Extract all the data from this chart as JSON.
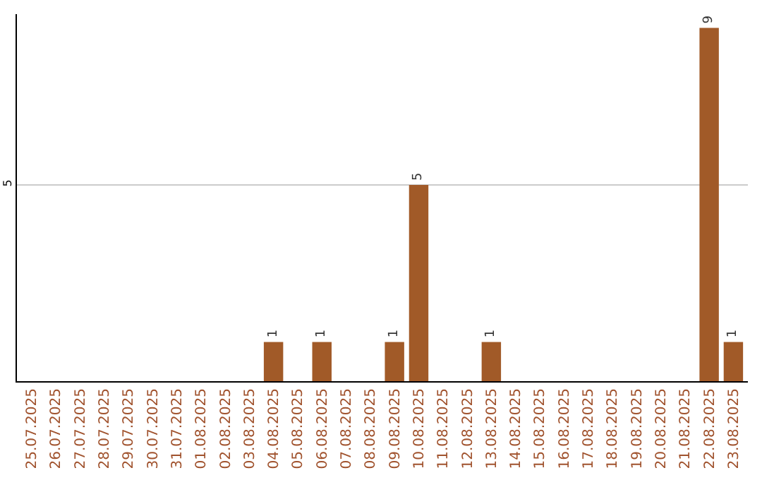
{
  "chart_data": {
    "type": "bar",
    "categories": [
      "25.07.2025",
      "26.07.2025",
      "27.07.2025",
      "28.07.2025",
      "29.07.2025",
      "30.07.2025",
      "31.07.2025",
      "01.08.2025",
      "02.08.2025",
      "03.08.2025",
      "04.08.2025",
      "05.08.2025",
      "06.08.2025",
      "07.08.2025",
      "08.08.2025",
      "09.08.2025",
      "10.08.2025",
      "11.08.2025",
      "12.08.2025",
      "13.08.2025",
      "14.08.2025",
      "15.08.2025",
      "16.08.2025",
      "17.08.2025",
      "18.08.2025",
      "19.08.2025",
      "20.08.2025",
      "21.08.2025",
      "22.08.2025",
      "23.08.2025"
    ],
    "values": [
      0,
      0,
      0,
      0,
      0,
      0,
      0,
      0,
      0,
      0,
      1,
      0,
      1,
      0,
      0,
      1,
      5,
      0,
      0,
      1,
      0,
      0,
      0,
      0,
      0,
      0,
      0,
      0,
      9,
      1
    ],
    "value_labels": [
      null,
      null,
      null,
      null,
      null,
      null,
      null,
      null,
      null,
      null,
      "1",
      null,
      "1",
      null,
      null,
      "1",
      "5",
      null,
      null,
      "1",
      null,
      null,
      null,
      null,
      null,
      null,
      null,
      null,
      "9",
      "1"
    ],
    "color": "#a15a28",
    "ylim": [
      0,
      9.35
    ],
    "yticks": [
      5
    ],
    "grid": "y",
    "legend": false
  }
}
